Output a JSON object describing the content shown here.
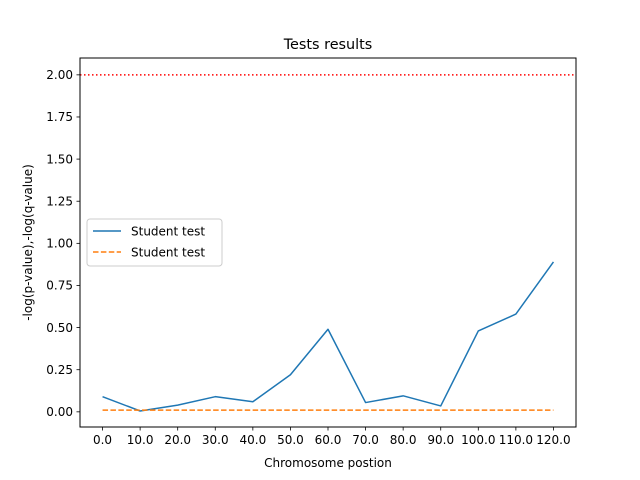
{
  "chart_data": {
    "type": "line",
    "title": "Tests results",
    "xlabel": "Chromosome postion",
    "ylabel": "-log(p-value),-log(q-value)",
    "x": [
      0,
      10,
      20,
      30,
      40,
      50,
      60,
      70,
      80,
      90,
      100,
      110,
      120
    ],
    "x_tick_labels": [
      "0.0",
      "10.0",
      "20.0",
      "30.0",
      "40.0",
      "50.0",
      "60.0",
      "70.0",
      "80.0",
      "90.0",
      "100.0",
      "110.0",
      "120.0"
    ],
    "y_ticks": [
      0.0,
      0.25,
      0.5,
      0.75,
      1.0,
      1.25,
      1.5,
      1.75,
      2.0
    ],
    "y_tick_labels": [
      "0.00",
      "0.25",
      "0.50",
      "0.75",
      "1.00",
      "1.25",
      "1.50",
      "1.75",
      "2.00"
    ],
    "xlim": [
      -6,
      126
    ],
    "ylim": [
      -0.09,
      2.1
    ],
    "grid": false,
    "legend_position": "center-left",
    "series": [
      {
        "name": "Student test",
        "style": "solid",
        "color": "#1f77b4",
        "values": [
          0.09,
          0.005,
          0.04,
          0.09,
          0.06,
          0.22,
          0.49,
          0.055,
          0.095,
          0.035,
          0.48,
          0.58,
          0.89
        ]
      },
      {
        "name": "Student test",
        "style": "dashed",
        "color": "#ff7f0e",
        "values": [
          0.01,
          0.01,
          0.01,
          0.01,
          0.01,
          0.01,
          0.01,
          0.01,
          0.01,
          0.01,
          0.01,
          0.01,
          0.01
        ]
      }
    ],
    "threshold": {
      "value": 2.0,
      "style": "dotted",
      "color": "#ff0000"
    }
  }
}
